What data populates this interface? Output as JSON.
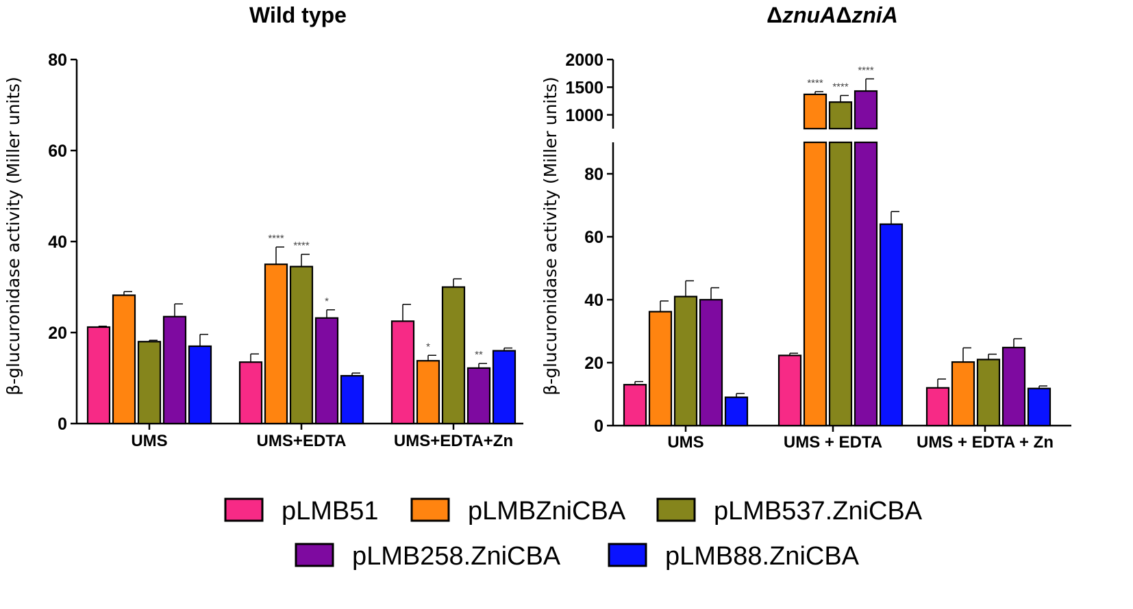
{
  "legend": [
    {
      "label": "pLMB51",
      "color": "#f72a86"
    },
    {
      "label": "pLMBZniCBA",
      "color": "#ff8410"
    },
    {
      "label": "pLMB537.ZniCBA",
      "color": "#85851c"
    },
    {
      "label": "pLMB258.ZniCBA",
      "color": "#7e0aa0"
    },
    {
      "label": "pLMB88.ZniCBA",
      "color": "#0a13ff"
    }
  ],
  "chart_data": [
    {
      "type": "bar",
      "title": "Wild type",
      "ylabel": "β-glucuronidase activity (Miller units)",
      "xlabel": "",
      "ylim": [
        0,
        80
      ],
      "yticks": [
        "0",
        "20",
        "40",
        "60",
        "80"
      ],
      "categories": [
        "UMS",
        "UMS+EDTA",
        "UMS+EDTA+Zn"
      ],
      "series": [
        {
          "name": "pLMB51",
          "values": [
            21.2,
            13.5,
            22.5
          ],
          "errors": [
            0.2,
            1.8,
            3.7
          ],
          "sig": [
            "",
            "",
            ""
          ]
        },
        {
          "name": "pLMBZniCBA",
          "values": [
            28.2,
            35.0,
            13.8
          ],
          "errors": [
            0.8,
            3.8,
            1.2
          ],
          "sig": [
            "",
            "****",
            "*"
          ]
        },
        {
          "name": "pLMB537.ZniCBA",
          "values": [
            18.0,
            34.5,
            30.0
          ],
          "errors": [
            0.3,
            2.7,
            1.8
          ],
          "sig": [
            "",
            "****",
            ""
          ]
        },
        {
          "name": "pLMB258.ZniCBA",
          "values": [
            23.5,
            23.2,
            12.2
          ],
          "errors": [
            2.8,
            1.8,
            1.0
          ],
          "sig": [
            "",
            "*",
            "**"
          ]
        },
        {
          "name": "pLMB88.ZniCBA",
          "values": [
            17.0,
            10.5,
            16.0
          ],
          "errors": [
            2.6,
            0.6,
            0.6
          ],
          "sig": [
            "",
            "",
            ""
          ]
        }
      ]
    },
    {
      "type": "bar",
      "title": "ΔznuAΔzniA",
      "ylabel": "β-glucuronidase activity (Miller units)",
      "xlabel": "",
      "ylim_lower": [
        0,
        90
      ],
      "ylim_upper": [
        750,
        2000
      ],
      "yticks_lower": [
        "0",
        "20",
        "40",
        "60",
        "80"
      ],
      "yticks_upper": [
        "1000",
        "1500",
        "2000"
      ],
      "categories": [
        "UMS",
        "UMS + EDTA",
        "UMS + EDTA + Zn"
      ],
      "series": [
        {
          "name": "pLMB51",
          "values": [
            13,
            22.3,
            12
          ],
          "errors": [
            1,
            0.7,
            2.8
          ],
          "sig": [
            "",
            "",
            ""
          ]
        },
        {
          "name": "pLMBZniCBA",
          "values": [
            36.2,
            1370,
            20.2
          ],
          "errors": [
            3.4,
            50,
            4.5
          ],
          "sig": [
            "",
            "****",
            ""
          ]
        },
        {
          "name": "pLMB537.ZniCBA",
          "values": [
            41,
            1230,
            21
          ],
          "errors": [
            5,
            120,
            1.7
          ],
          "sig": [
            "",
            "****",
            ""
          ]
        },
        {
          "name": "pLMB258.ZniCBA",
          "values": [
            40,
            1430,
            24.8
          ],
          "errors": [
            3.8,
            220,
            2.8
          ],
          "sig": [
            "",
            "****",
            ""
          ]
        },
        {
          "name": "pLMB88.ZniCBA",
          "values": [
            9,
            64,
            11.8
          ],
          "errors": [
            1.2,
            4,
            0.8
          ],
          "sig": [
            "",
            "",
            ""
          ]
        }
      ]
    }
  ]
}
